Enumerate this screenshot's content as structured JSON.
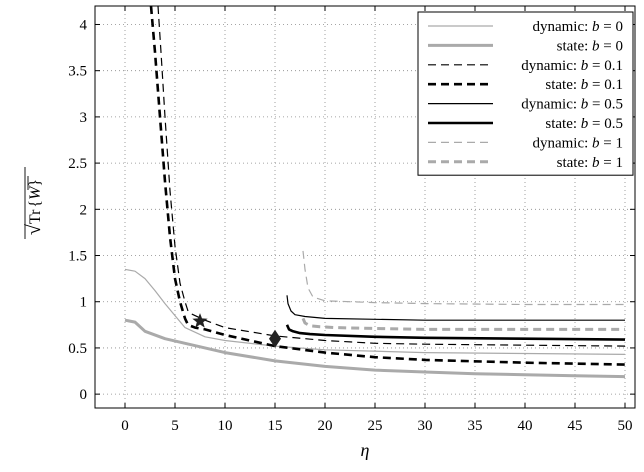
{
  "chart_data": {
    "type": "line",
    "title": "",
    "xlabel": "η",
    "ylabel": "√(Tr{W̅})",
    "ylabel_parts": {
      "root": "√",
      "tr": "Tr",
      "open": "{",
      "w": "W",
      "close": "}"
    },
    "xlim": [
      -3,
      51
    ],
    "ylim": [
      -0.15,
      4.2
    ],
    "xticks": [
      0,
      5,
      10,
      15,
      20,
      25,
      30,
      35,
      40,
      45,
      50
    ],
    "yticks": [
      0,
      0.5,
      1,
      1.5,
      2,
      2.5,
      3,
      3.5,
      4
    ],
    "xtick_labels": [
      "0",
      "5",
      "10",
      "15",
      "20",
      "25",
      "30",
      "35",
      "40",
      "45",
      "50"
    ],
    "ytick_labels": [
      "0",
      "0.5",
      "1",
      "1.5",
      "2",
      "2.5",
      "3",
      "3.5",
      "4"
    ],
    "grid": true,
    "legend_position": "top-right",
    "series": [
      {
        "name": "dynamic: b = 0",
        "label_prefix": "dynamic:",
        "label_b": "b",
        "label_eq": "= 0",
        "color": "#aaaaaa",
        "width": 1.2,
        "dash": "",
        "x": [
          0,
          1,
          2,
          3,
          4,
          5,
          6,
          8,
          10,
          15,
          20,
          30,
          40,
          50
        ],
        "y": [
          1.35,
          1.33,
          1.25,
          1.12,
          0.98,
          0.85,
          0.72,
          0.62,
          0.58,
          0.52,
          0.48,
          0.45,
          0.44,
          0.43
        ]
      },
      {
        "name": "state: b = 0",
        "label_prefix": "state:",
        "label_b": "b",
        "label_eq": "= 0",
        "color": "#aaaaaa",
        "width": 3,
        "dash": "",
        "x": [
          0,
          1,
          2,
          4,
          6,
          8,
          10,
          15,
          20,
          25,
          30,
          35,
          40,
          45,
          50
        ],
        "y": [
          0.8,
          0.78,
          0.68,
          0.6,
          0.55,
          0.5,
          0.45,
          0.36,
          0.3,
          0.26,
          0.24,
          0.22,
          0.21,
          0.2,
          0.19
        ]
      },
      {
        "name": "dynamic: b = 0.1",
        "label_prefix": "dynamic:",
        "label_b": "b",
        "label_eq": "= 0.1",
        "color": "#000000",
        "width": 1.2,
        "dash": "8,5",
        "x": [
          3.3,
          3.6,
          4.0,
          4.5,
          5.0,
          5.5,
          6.0,
          6.3,
          6.6,
          7,
          8,
          10,
          15,
          20,
          25,
          30,
          40,
          50
        ],
        "y": [
          4.2,
          3.7,
          3.0,
          2.2,
          1.6,
          1.2,
          1.0,
          0.9,
          0.87,
          0.85,
          0.8,
          0.72,
          0.63,
          0.58,
          0.55,
          0.54,
          0.53,
          0.52
        ]
      },
      {
        "name": "state: b = 0.1",
        "label_prefix": "state:",
        "label_b": "b",
        "label_eq": "= 0.1",
        "color": "#000000",
        "width": 2.6,
        "dash": "8,5",
        "x": [
          2.6,
          3.0,
          3.5,
          4.0,
          4.5,
          5.0,
          5.5,
          6.0,
          6.3,
          7,
          8,
          10,
          15,
          20,
          25,
          30,
          40,
          50
        ],
        "y": [
          4.2,
          3.7,
          3.0,
          2.3,
          1.7,
          1.25,
          1.0,
          0.82,
          0.75,
          0.72,
          0.7,
          0.64,
          0.52,
          0.45,
          0.4,
          0.37,
          0.34,
          0.32
        ]
      },
      {
        "name": "dynamic: b = 0.5",
        "label_prefix": "dynamic:",
        "label_b": "b",
        "label_eq": "= 0.5",
        "color": "#000000",
        "width": 1.2,
        "dash": "",
        "x": [
          16.2,
          16.3,
          16.6,
          17,
          18,
          20,
          25,
          30,
          40,
          50
        ],
        "y": [
          1.07,
          0.98,
          0.9,
          0.86,
          0.84,
          0.82,
          0.81,
          0.8,
          0.8,
          0.8
        ]
      },
      {
        "name": "state: b = 0.5",
        "label_prefix": "state:",
        "label_b": "b",
        "label_eq": "= 0.5",
        "color": "#000000",
        "width": 2.6,
        "dash": "",
        "x": [
          16.2,
          16.4,
          16.8,
          17.5,
          18.5,
          20,
          25,
          30,
          40,
          50
        ],
        "y": [
          0.75,
          0.7,
          0.68,
          0.66,
          0.65,
          0.64,
          0.62,
          0.61,
          0.6,
          0.59
        ]
      },
      {
        "name": "dynamic: b = 1",
        "label_prefix": "dynamic:",
        "label_b": "b",
        "label_eq": "= 1",
        "color": "#aaaaaa",
        "width": 1.2,
        "dash": "8,5",
        "x": [
          17.8,
          18.0,
          18.3,
          18.8,
          20,
          25,
          30,
          40,
          50
        ],
        "y": [
          1.55,
          1.35,
          1.15,
          1.05,
          1.01,
          0.99,
          0.98,
          0.97,
          0.97
        ]
      },
      {
        "name": "state: b = 1",
        "label_prefix": "state:",
        "label_b": "b",
        "label_eq": "= 1",
        "color": "#aaaaaa",
        "width": 3,
        "dash": "8,5",
        "x": [
          17.8,
          18.0,
          18.5,
          19.5,
          21,
          25,
          30,
          40,
          50
        ],
        "y": [
          0.82,
          0.77,
          0.74,
          0.73,
          0.72,
          0.71,
          0.7,
          0.7,
          0.7
        ]
      }
    ],
    "markers": [
      {
        "name": "star-marker",
        "shape": "star",
        "x": 7.5,
        "y": 0.79
      },
      {
        "name": "diamond-marker",
        "shape": "diamond",
        "x": 15,
        "y": 0.6
      }
    ]
  }
}
